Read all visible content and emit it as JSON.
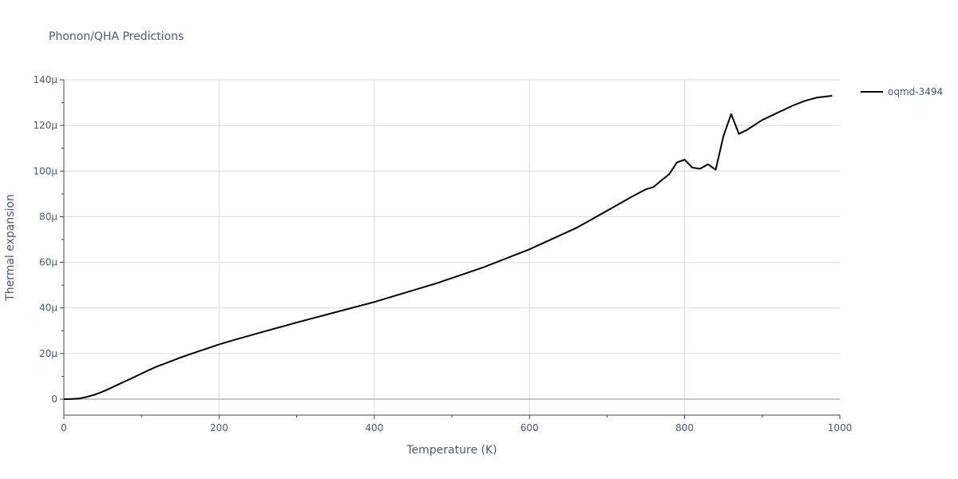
{
  "chart_data": {
    "type": "line",
    "title": "Phonon/QHA Predictions",
    "xlabel": "Temperature (K)",
    "ylabel": "Thermal expansion",
    "xlim": [
      0,
      1000
    ],
    "ylim": [
      -7,
      140
    ],
    "x_ticks": [
      0,
      200,
      400,
      600,
      800,
      1000
    ],
    "x_tick_labels": [
      "0",
      "200",
      "400",
      "600",
      "800",
      "1000"
    ],
    "y_ticks": [
      0,
      20,
      40,
      60,
      80,
      100,
      120,
      140
    ],
    "y_tick_labels": [
      "0",
      "20μ",
      "40μ",
      "60μ",
      "80μ",
      "100μ",
      "120μ",
      "140μ"
    ],
    "grid": true,
    "legend_position": "top-right",
    "series": [
      {
        "name": "oqmd-3494",
        "color": "#000000",
        "x": [
          0,
          10,
          20,
          30,
          40,
          50,
          60,
          70,
          80,
          90,
          100,
          110,
          120,
          130,
          140,
          150,
          160,
          180,
          200,
          220,
          250,
          300,
          350,
          400,
          440,
          480,
          540,
          600,
          660,
          700,
          730,
          750,
          760,
          770,
          780,
          790,
          800,
          810,
          820,
          830,
          840,
          850,
          860,
          870,
          880,
          900,
          920,
          940,
          955,
          970,
          990
        ],
        "values": [
          0,
          0.1,
          0.3,
          1.0,
          2.0,
          3.3,
          4.8,
          6.4,
          8.0,
          9.6,
          11.2,
          12.8,
          14.3,
          15.6,
          16.9,
          18.2,
          19.4,
          21.7,
          24.0,
          26.0,
          28.9,
          33.6,
          38.1,
          42.6,
          46.7,
          50.8,
          57.7,
          65.7,
          75.0,
          82.6,
          88.4,
          92.0,
          93.0,
          95.9,
          98.6,
          103.8,
          105.0,
          101.5,
          101.0,
          103.0,
          100.6,
          115.4,
          125.0,
          116.3,
          118.0,
          122.4,
          125.6,
          128.8,
          130.8,
          132.2,
          133.0
        ]
      }
    ]
  }
}
